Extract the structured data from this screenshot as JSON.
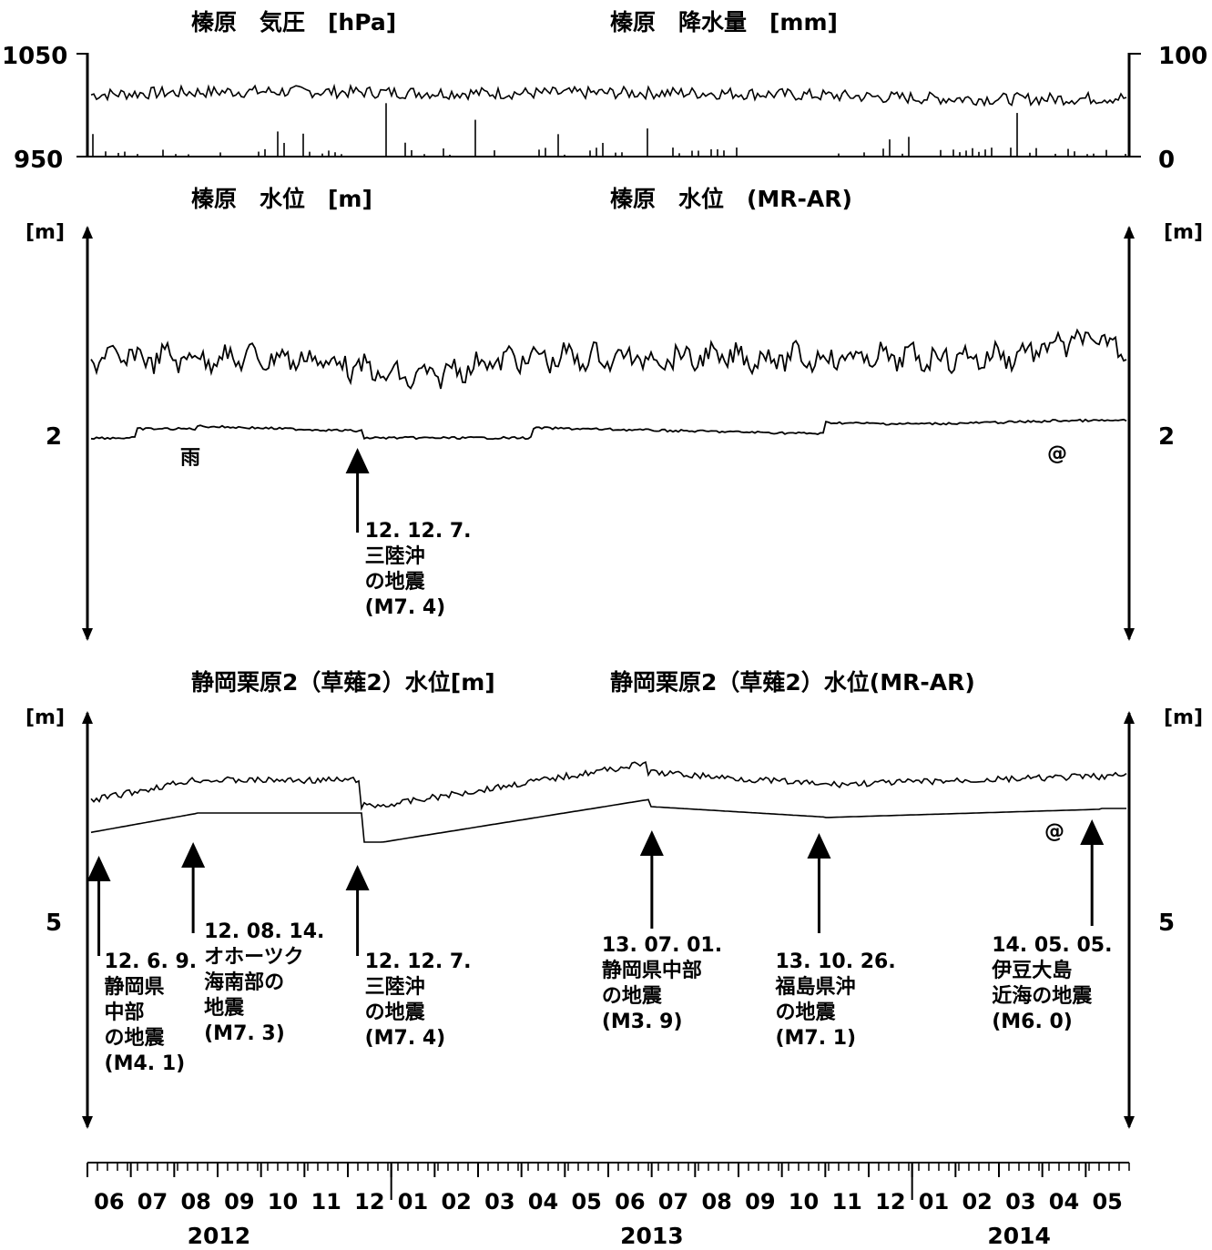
{
  "chart_data": [
    {
      "type": "line",
      "title_left": "榛原　気圧　[hPa]",
      "title_right": "榛原　降水量　[mm]",
      "left_axis": {
        "ticks": [
          "1050",
          "950"
        ],
        "ylim": [
          950,
          1050
        ]
      },
      "right_axis": {
        "ticks": [
          "100",
          "0"
        ],
        "ylim": [
          0,
          100
        ]
      },
      "series": [
        {
          "name": "気圧",
          "style": "line",
          "mean": 1010,
          "amplitude": 12
        },
        {
          "name": "降水量",
          "style": "bars"
        }
      ]
    },
    {
      "type": "line",
      "title_left": "榛原　水位　[m]",
      "title_right": "榛原　水位　(MR-AR)",
      "left_axis": {
        "unit": "[m]",
        "tick": "2"
      },
      "right_axis": {
        "unit": "[m]",
        "tick": "2"
      },
      "series": [
        {
          "name": "水位",
          "style": "noisy"
        },
        {
          "name": "水位 (MR-AR)",
          "style": "smooth"
        }
      ],
      "annotations": [
        {
          "text": "雨",
          "date": "2012-08-05"
        },
        {
          "text": "@",
          "date": "2014-04-05"
        }
      ],
      "events": [
        {
          "date": "2012-12-07",
          "lines": [
            "12. 12. 7.",
            "三陸沖",
            "の地震",
            "(M7. 4)"
          ]
        }
      ]
    },
    {
      "type": "line",
      "title_left": "静岡栗原2（草薙2）水位[m]",
      "title_right": "静岡栗原2（草薙2）水位(MR-AR)",
      "left_axis": {
        "unit": "[m]",
        "tick": "5"
      },
      "right_axis": {
        "unit": "[m]",
        "tick": "5"
      },
      "series": [
        {
          "name": "水位",
          "style": "noisy"
        },
        {
          "name": "水位 (MR-AR)",
          "style": "smooth"
        }
      ],
      "annotations": [
        {
          "text": "@",
          "date": "2014-04-05"
        }
      ],
      "events": [
        {
          "date": "2012-06-09",
          "lines": [
            "12. 6. 9.",
            "静岡県",
            "中部",
            "の地震",
            "(M4. 1)"
          ]
        },
        {
          "date": "2012-08-14",
          "lines": [
            "12. 08. 14.",
            "オホーツク",
            "海南部の",
            "地震",
            "(M7. 3)"
          ]
        },
        {
          "date": "2012-12-07",
          "lines": [
            "12. 12. 7.",
            "三陸沖",
            "の地震",
            "(M7. 4)"
          ]
        },
        {
          "date": "2013-07-01",
          "lines": [
            "13. 07. 01.",
            "静岡県中部",
            "の地震",
            "(M3. 9)"
          ]
        },
        {
          "date": "2013-10-26",
          "lines": [
            "13. 10. 26.",
            "福島県沖",
            "の地震",
            "(M7. 1)"
          ]
        },
        {
          "date": "2014-05-05",
          "lines": [
            "14. 05. 05.",
            "伊豆大島",
            "近海の地震",
            "(M6. 0)"
          ]
        }
      ]
    }
  ],
  "time_axis": {
    "range": [
      "2012-06-01",
      "2014-05-31"
    ],
    "months": [
      "06",
      "07",
      "08",
      "09",
      "10",
      "11",
      "12",
      "01",
      "02",
      "03",
      "04",
      "05",
      "06",
      "07",
      "08",
      "09",
      "10",
      "11",
      "12",
      "01",
      "02",
      "03",
      "04",
      "05"
    ],
    "years": [
      {
        "label": "2012",
        "date": "2012-09-01"
      },
      {
        "label": "2013",
        "date": "2013-07-01"
      },
      {
        "label": "2014",
        "date": "2014-03-15"
      }
    ]
  }
}
